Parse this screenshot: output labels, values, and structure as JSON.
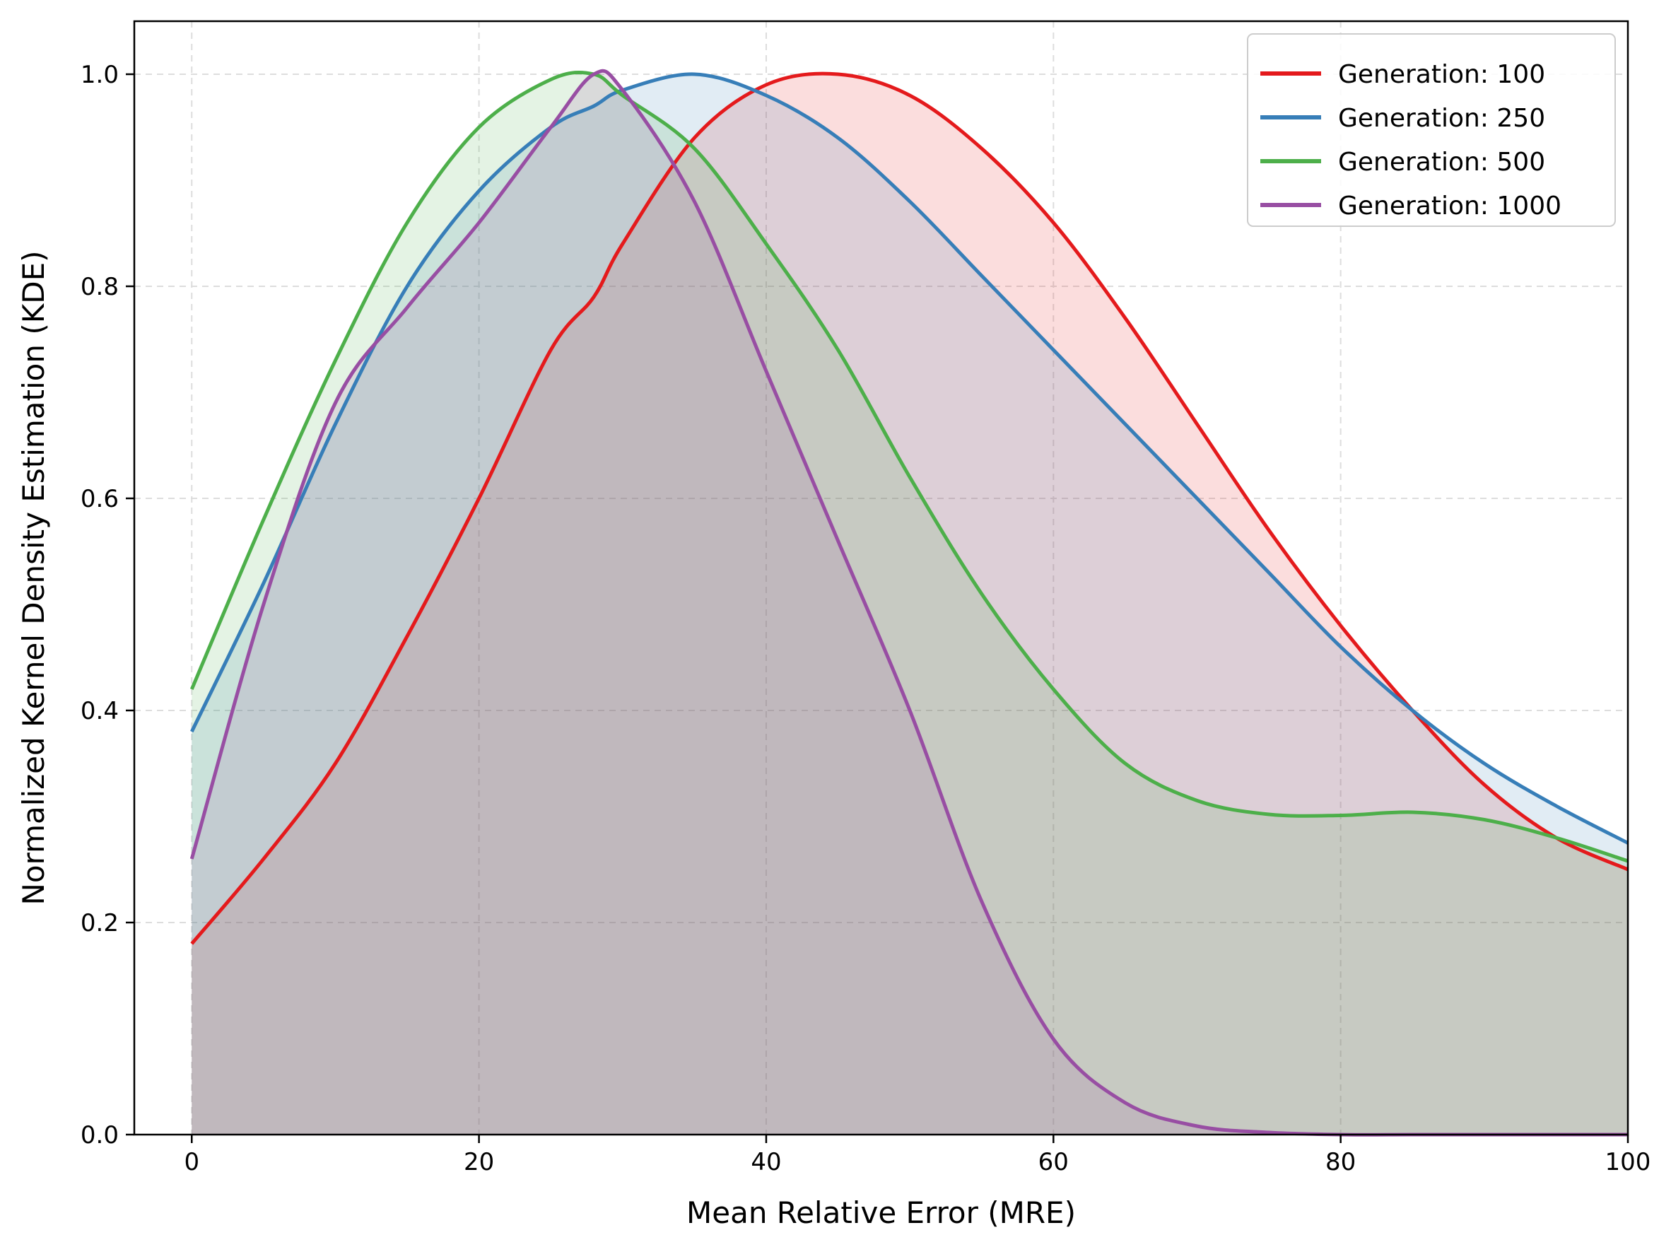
{
  "chart_data": {
    "type": "area",
    "xlabel": "Mean Relative Error (MRE)",
    "ylabel": "Normalized Kernel Density Estimation (KDE)",
    "xlim": [
      -4,
      100
    ],
    "ylim": [
      0,
      1.05
    ],
    "xticks": [
      0,
      20,
      40,
      60,
      80,
      100
    ],
    "yticks": [
      0.0,
      0.2,
      0.4,
      0.6,
      0.8,
      1.0
    ],
    "grid": true,
    "grid_style": "dashed",
    "legend_position": "top-right",
    "x": [
      0,
      5,
      10,
      15,
      20,
      25,
      28,
      30,
      35,
      40,
      45,
      50,
      55,
      60,
      65,
      70,
      75,
      80,
      85,
      90,
      95,
      100
    ],
    "series": [
      {
        "name": "Generation: 100",
        "color": "#e41a1c",
        "values": [
          0.18,
          0.26,
          0.35,
          0.47,
          0.6,
          0.74,
          0.79,
          0.84,
          0.94,
          0.99,
          1.0,
          0.98,
          0.93,
          0.86,
          0.77,
          0.67,
          0.57,
          0.48,
          0.4,
          0.33,
          0.28,
          0.25
        ]
      },
      {
        "name": "Generation: 250",
        "color": "#377eb8",
        "values": [
          0.38,
          0.52,
          0.67,
          0.8,
          0.89,
          0.95,
          0.97,
          0.985,
          1.0,
          0.98,
          0.94,
          0.88,
          0.81,
          0.74,
          0.67,
          0.6,
          0.53,
          0.46,
          0.4,
          0.35,
          0.31,
          0.275
        ]
      },
      {
        "name": "Generation: 500",
        "color": "#4daf4a",
        "values": [
          0.42,
          0.58,
          0.73,
          0.86,
          0.95,
          0.995,
          1.0,
          0.98,
          0.93,
          0.84,
          0.74,
          0.62,
          0.51,
          0.42,
          0.35,
          0.315,
          0.302,
          0.301,
          0.304,
          0.297,
          0.28,
          0.258
        ]
      },
      {
        "name": "Generation: 1000",
        "color": "#984ea3",
        "values": [
          0.26,
          0.5,
          0.69,
          0.78,
          0.86,
          0.95,
          1.0,
          0.985,
          0.88,
          0.72,
          0.56,
          0.4,
          0.22,
          0.09,
          0.03,
          0.008,
          0.002,
          0.0,
          0.0,
          0.0,
          0.0,
          0.0
        ]
      }
    ]
  }
}
